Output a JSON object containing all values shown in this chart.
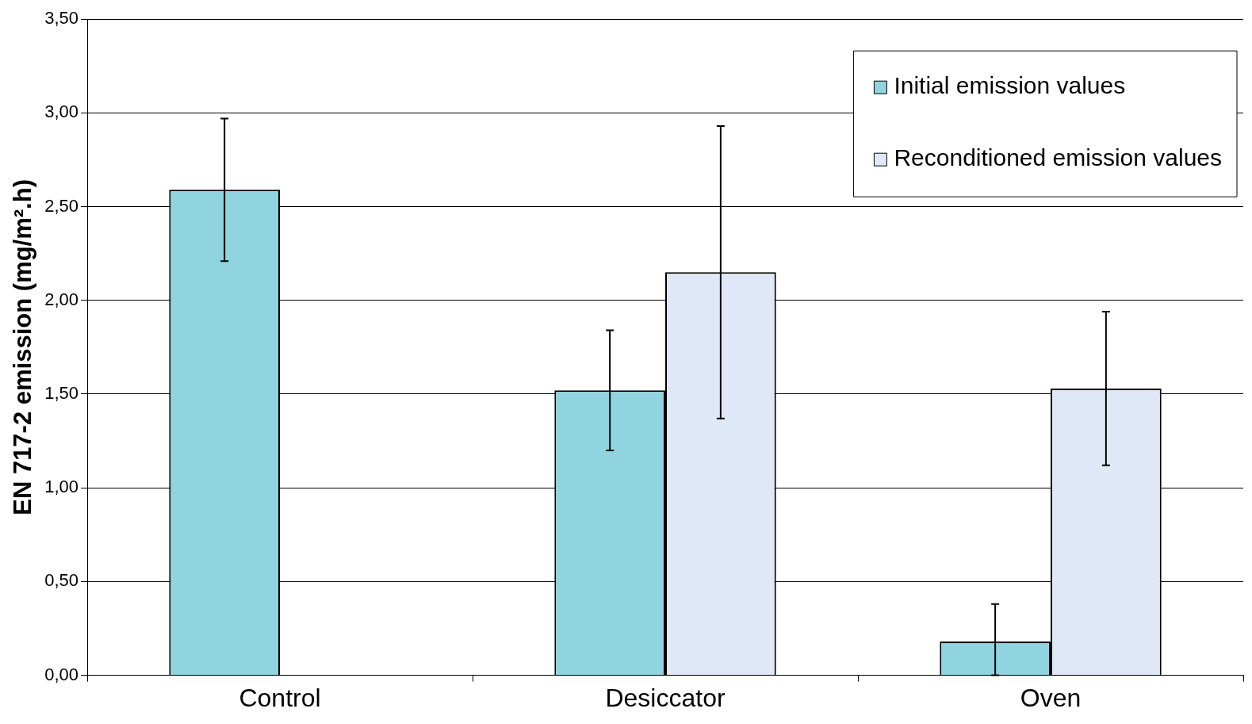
{
  "chart_data": {
    "type": "bar",
    "ylabel": "EN 717-2 emission (mg/m².h)",
    "categories": [
      "Control",
      "Desiccator",
      "Oven"
    ],
    "series": [
      {
        "name": "Initial emission values",
        "color": "#8fd4de",
        "values": [
          2.59,
          1.52,
          0.18
        ],
        "errors": [
          [
            2.21,
            2.97
          ],
          [
            1.2,
            1.84
          ],
          [
            0,
            0.38
          ]
        ]
      },
      {
        "name": "Reconditioned emission values",
        "color": "#dfe8f6",
        "values": [
          null,
          2.15,
          1.53
        ],
        "errors": [
          null,
          [
            1.37,
            2.93
          ],
          [
            1.12,
            1.94
          ]
        ]
      }
    ],
    "ylim": [
      0,
      3.5
    ],
    "yticks": [
      {
        "value": 0,
        "label": "0,00"
      },
      {
        "value": 0.5,
        "label": "0,50"
      },
      {
        "value": 1,
        "label": "1,00"
      },
      {
        "value": 1.5,
        "label": "1,50"
      },
      {
        "value": 2,
        "label": "2,00"
      },
      {
        "value": 2.5,
        "label": "2,50"
      },
      {
        "value": 3,
        "label": "3,00"
      },
      {
        "value": 3.5,
        "label": "3,50"
      }
    ],
    "grid": "y",
    "legend": "top right"
  }
}
